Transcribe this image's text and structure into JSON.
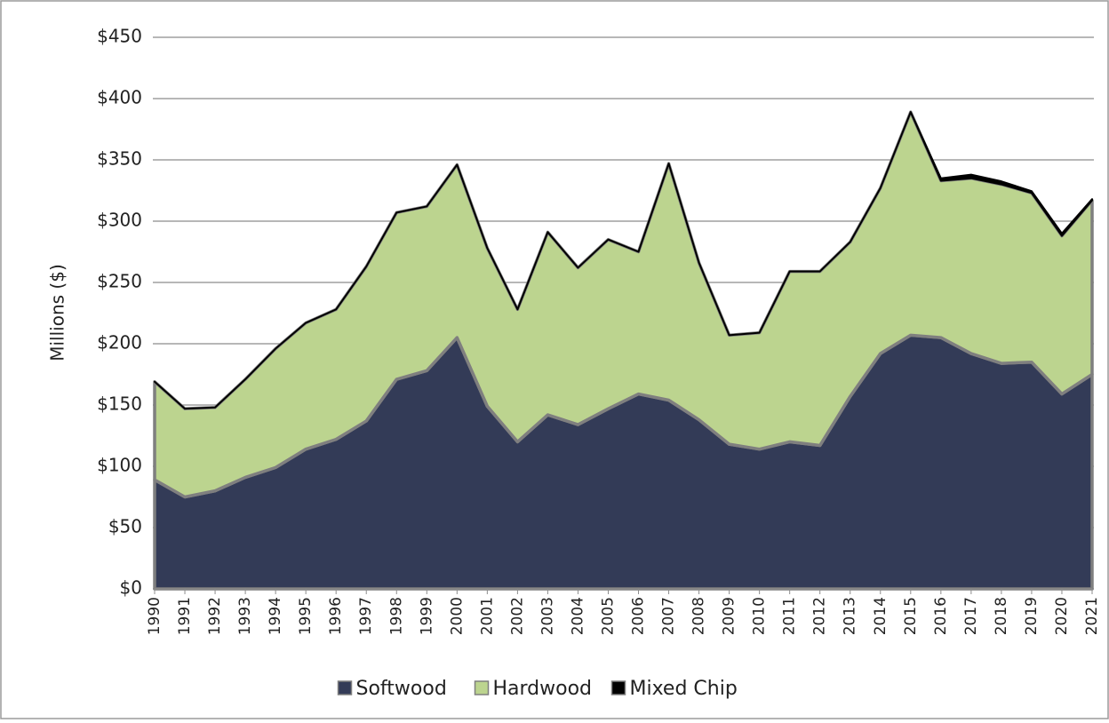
{
  "chart_data": {
    "type": "stacked-area",
    "y_label": "Millions ($)",
    "categories": [
      "1990",
      "1991",
      "1992",
      "1993",
      "1994",
      "1995",
      "1996",
      "1997",
      "1998",
      "1999",
      "2000",
      "2001",
      "2002",
      "2003",
      "2004",
      "2005",
      "2006",
      "2007",
      "2008",
      "2009",
      "2010",
      "2011",
      "2012",
      "2013",
      "2014",
      "2015",
      "2016",
      "2017",
      "2018",
      "2019",
      "2020",
      "2021"
    ],
    "series": [
      {
        "name": "Softwood",
        "color": "#333b57",
        "values": [
          89,
          75,
          80,
          91,
          99,
          114,
          122,
          137,
          171,
          178,
          205,
          149,
          120,
          142,
          134,
          147,
          159,
          154,
          138,
          118,
          114,
          120,
          117,
          157,
          192,
          207,
          205,
          192,
          184,
          185,
          159,
          175
        ]
      },
      {
        "name": "Hardwood",
        "color": "#bcd48f",
        "values": [
          80,
          72,
          68,
          80,
          97,
          103,
          106,
          126,
          136,
          134,
          141,
          129,
          108,
          149,
          128,
          138,
          116,
          193,
          128,
          89,
          95,
          139,
          142,
          126,
          135,
          182,
          128,
          143,
          146,
          138,
          129,
          142
        ]
      },
      {
        "name": "Mixed Chip",
        "color": "#000000",
        "values": [
          0,
          0,
          0,
          0,
          0,
          0,
          0,
          0,
          0,
          0,
          0,
          0,
          0,
          0,
          0,
          0,
          0,
          0,
          0,
          0,
          0,
          0,
          0,
          0,
          0,
          0,
          2,
          3,
          2.5,
          1.5,
          2,
          1
        ]
      }
    ],
    "ylim": [
      0,
      450
    ],
    "yticks": [
      {
        "value": 0,
        "label": "$0"
      },
      {
        "value": 50,
        "label": "$50"
      },
      {
        "value": 100,
        "label": "$100"
      },
      {
        "value": 150,
        "label": "$150"
      },
      {
        "value": 200,
        "label": "$200"
      },
      {
        "value": 250,
        "label": "$250"
      },
      {
        "value": 300,
        "label": "$300"
      },
      {
        "value": 350,
        "label": "$350"
      },
      {
        "value": 400,
        "label": "$400"
      },
      {
        "value": 450,
        "label": "$450"
      }
    ],
    "grid": true,
    "legend": "bottom"
  }
}
